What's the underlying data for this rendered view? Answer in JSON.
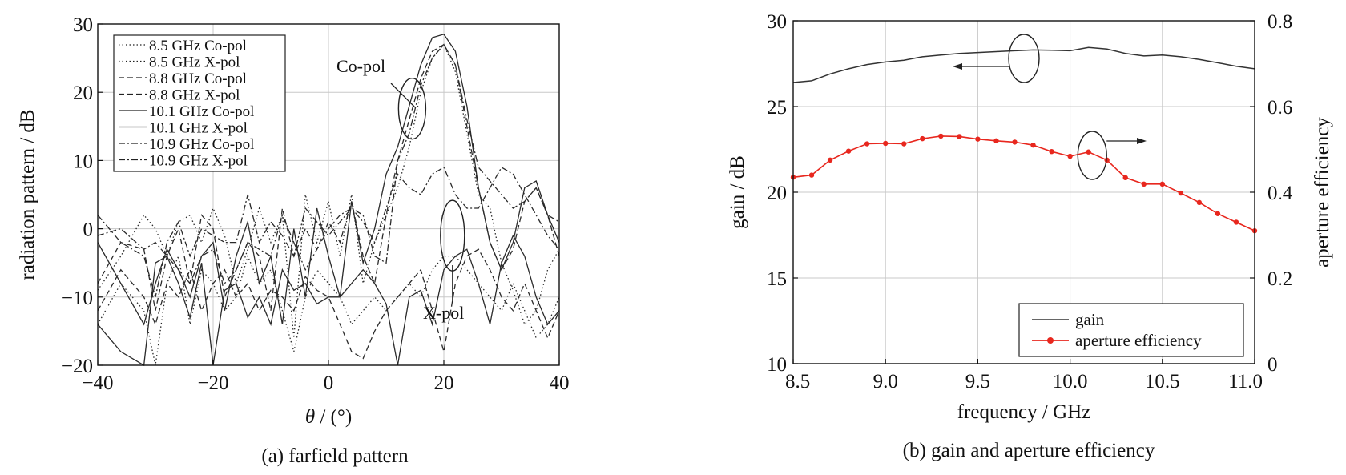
{
  "chart_data": [
    {
      "type": "line",
      "caption": "(a) farfield pattern",
      "xlabel_symbol": "θ",
      "xlabel_rest": " / (°)",
      "ylabel": "radiation pattern / dB",
      "xlim": [
        -40,
        40
      ],
      "ylim": [
        -20,
        30
      ],
      "xticks": [
        "−40",
        "−20",
        "0",
        "20",
        "40"
      ],
      "yticks": [
        "30",
        "20",
        "10",
        "0",
        "−10",
        "−20"
      ],
      "grid": true,
      "legend_position": "top-left",
      "annotations": [
        {
          "text": "Co-pol",
          "x": 14,
          "y": 19
        },
        {
          "text": "X-pol",
          "x": 21,
          "y": -0.5
        }
      ],
      "series": [
        {
          "name": "8.5 GHz Co-pol",
          "style": "dotted",
          "x": [
            -40,
            -36,
            -32,
            -30,
            -28,
            -26,
            -24,
            -22,
            -20,
            -18,
            -16,
            -14,
            -12,
            -10,
            -8,
            -6,
            -4,
            -2,
            0,
            2,
            4,
            6,
            8,
            10,
            12,
            14,
            16,
            18,
            20,
            22,
            24,
            26,
            28,
            30,
            32,
            34,
            36,
            38,
            40
          ],
          "y": [
            -9,
            -4,
            2,
            0,
            -4,
            1,
            2,
            -2,
            3,
            -1,
            -8,
            -3,
            3,
            -2,
            2,
            -16,
            5,
            -2,
            4,
            -4,
            5,
            -8,
            -2,
            2,
            6,
            12,
            20,
            25,
            27,
            23,
            14,
            5,
            3,
            -5,
            -9,
            -14,
            -12,
            -6,
            -3
          ]
        },
        {
          "name": "8.5 GHz X-pol",
          "style": "dotted",
          "x": [
            -40,
            -36,
            -32,
            -30,
            -28,
            -26,
            -24,
            -22,
            -20,
            -18,
            -16,
            -14,
            -12,
            -10,
            -8,
            -6,
            -4,
            -2,
            0,
            2,
            4,
            6,
            8,
            10,
            12,
            14,
            16,
            18,
            20,
            22,
            24,
            26,
            28,
            30,
            32,
            34,
            36,
            38,
            40
          ],
          "y": [
            -14,
            -8,
            -12,
            -20,
            -8,
            -4,
            -14,
            -6,
            -8,
            -12,
            -10,
            -4,
            -8,
            -6,
            -12,
            -18,
            -10,
            -6,
            -8,
            -10,
            -14,
            -12,
            -10,
            -12,
            -10,
            -8,
            -10,
            -6,
            -4,
            -4,
            -6,
            -8,
            -10,
            -12,
            -8,
            -12,
            -16,
            -14,
            -10
          ]
        },
        {
          "name": "8.8 GHz Co-pol",
          "style": "dashed",
          "x": [
            -40,
            -36,
            -32,
            -30,
            -28,
            -26,
            -24,
            -22,
            -20,
            -18,
            -16,
            -14,
            -12,
            -10,
            -8,
            -6,
            -4,
            -2,
            0,
            2,
            4,
            6,
            8,
            10,
            12,
            14,
            16,
            18,
            20,
            22,
            24,
            26,
            28,
            30,
            32,
            34,
            36,
            38,
            40
          ],
          "y": [
            -8,
            -2,
            -3,
            -12,
            -4,
            0,
            -8,
            2,
            0,
            -10,
            -6,
            -2,
            -4,
            -12,
            3,
            -4,
            0,
            -3,
            1,
            -2,
            4,
            -4,
            -8,
            2,
            10,
            16,
            22,
            26,
            27,
            24,
            15,
            6,
            -2,
            -6,
            -3,
            4,
            6,
            2,
            -4
          ]
        },
        {
          "name": "8.8 GHz X-pol",
          "style": "dashed",
          "x": [
            -40,
            -36,
            -32,
            -30,
            -28,
            -26,
            -24,
            -22,
            -20,
            -18,
            -16,
            -14,
            -12,
            -10,
            -8,
            -6,
            -4,
            -2,
            0,
            2,
            4,
            6,
            8,
            10,
            12,
            14,
            16,
            18,
            20,
            22,
            24,
            26,
            28,
            30,
            32,
            34,
            36,
            38,
            40
          ],
          "y": [
            -12,
            -6,
            -10,
            -14,
            -8,
            -10,
            -6,
            -12,
            -8,
            -6,
            -10,
            -8,
            -12,
            -9,
            -10,
            -12,
            -7,
            -9,
            -10,
            -14,
            -18,
            -19,
            -15,
            -12,
            -10,
            -8,
            -6,
            -12,
            -18,
            -8,
            -4,
            -3,
            -6,
            -10,
            -12,
            -8,
            -12,
            -16,
            -12
          ]
        },
        {
          "name": "10.1 GHz Co-pol",
          "style": "solid",
          "x": [
            -40,
            -36,
            -32,
            -30,
            -28,
            -26,
            -24,
            -22,
            -20,
            -18,
            -16,
            -14,
            -12,
            -10,
            -8,
            -6,
            -4,
            -2,
            0,
            2,
            4,
            6,
            8,
            10,
            12,
            14,
            16,
            18,
            20,
            22,
            24,
            26,
            28,
            30,
            32,
            34,
            36,
            38,
            40
          ],
          "y": [
            -2,
            -8,
            -14,
            -8,
            -3,
            -6,
            -10,
            -4,
            -2,
            -12,
            -4,
            1,
            -8,
            -4,
            -14,
            0,
            -10,
            3,
            -4,
            -10,
            4,
            -5,
            0,
            8,
            12,
            18,
            24,
            28,
            28.5,
            26,
            18,
            6,
            -2,
            -6,
            -2,
            6,
            7,
            2,
            -2
          ]
        },
        {
          "name": "10.1 GHz X-pol",
          "style": "solid",
          "x": [
            -40,
            -36,
            -32,
            -30,
            -28,
            -26,
            -24,
            -22,
            -20,
            -18,
            -16,
            -14,
            -12,
            -10,
            -8,
            -6,
            -4,
            -2,
            0,
            2,
            4,
            6,
            8,
            10,
            12,
            14,
            16,
            18,
            20,
            22,
            24,
            26,
            28,
            30,
            32,
            34,
            36,
            38,
            40
          ],
          "y": [
            -14,
            -18,
            -20,
            -5,
            -4,
            -8,
            -13,
            -5,
            -20,
            -9,
            -8,
            -13,
            -10,
            -14,
            -6,
            -9,
            -8,
            -11,
            -10,
            -10,
            -8,
            -6,
            -8,
            -11,
            -20,
            -10,
            -9,
            -14,
            -6,
            -4,
            -3,
            -8,
            -14,
            -5,
            -1,
            -4,
            -10,
            -14,
            -12
          ]
        },
        {
          "name": "10.9 GHz Co-pol",
          "style": "dashdot",
          "x": [
            -40,
            -36,
            -32,
            -30,
            -28,
            -26,
            -24,
            -22,
            -20,
            -18,
            -16,
            -14,
            -12,
            -10,
            -8,
            -6,
            -4,
            -2,
            0,
            2,
            4,
            6,
            8,
            10,
            12,
            14,
            16,
            18,
            20,
            22,
            24,
            26,
            28,
            30,
            32,
            34,
            36,
            38,
            40
          ],
          "y": [
            2,
            -2,
            -4,
            -10,
            -2,
            1,
            -4,
            0,
            -1,
            -2,
            -2,
            5,
            -2,
            1,
            -1,
            -4,
            3,
            1,
            -1,
            1,
            3,
            2,
            -4,
            -5,
            10,
            14,
            21,
            25,
            27,
            24,
            16,
            9,
            7,
            5,
            3,
            4,
            6,
            2,
            1
          ]
        },
        {
          "name": "10.9 GHz X-pol",
          "style": "dashdot",
          "x": [
            -40,
            -36,
            -32,
            -30,
            -28,
            -26,
            -24,
            -22,
            -20,
            -18,
            -16,
            -14,
            -12,
            -10,
            -8,
            -6,
            -4,
            -2,
            0,
            2,
            4,
            6,
            8,
            10,
            12,
            14,
            16,
            18,
            20,
            22,
            24,
            26,
            28,
            30,
            32,
            34,
            36,
            38,
            40
          ],
          "y": [
            -1,
            0,
            -3,
            -2,
            -4,
            -6,
            -8,
            -4,
            -3,
            -8,
            -6,
            -2,
            -3,
            -4,
            2,
            -2,
            -6,
            -3,
            0,
            2,
            3,
            1,
            -2,
            3,
            8,
            6,
            5,
            8,
            9,
            5,
            3,
            3,
            6,
            9,
            8,
            5,
            2,
            -1,
            -3
          ]
        }
      ]
    },
    {
      "type": "line",
      "caption": "(b) gain and aperture efficiency",
      "xlabel": "frequency / GHz",
      "ylabel": "gain / dB",
      "ylabel_right": "aperture efficiency",
      "xlim": [
        8.5,
        11.0
      ],
      "ylim": [
        10,
        30
      ],
      "ylim_right": [
        0,
        0.8
      ],
      "xticks": [
        "8.5",
        "9.0",
        "9.5",
        "10.0",
        "10.5",
        "11.0"
      ],
      "yticks": [
        "30",
        "25",
        "20",
        "15",
        "10"
      ],
      "yticks_right": [
        "0.8",
        "0.6",
        "0.4",
        "0.2",
        "0"
      ],
      "grid": true,
      "legend_position": "bottom-right",
      "series": [
        {
          "name": "gain",
          "color": "#333333",
          "axis": "left",
          "x": [
            8.5,
            8.6,
            8.7,
            8.8,
            8.9,
            9.0,
            9.1,
            9.2,
            9.3,
            9.4,
            9.5,
            9.6,
            9.7,
            9.8,
            9.9,
            10.0,
            10.1,
            10.2,
            10.3,
            10.4,
            10.5,
            10.6,
            10.7,
            10.8,
            10.9,
            11.0
          ],
          "y": [
            26.4,
            26.5,
            26.9,
            27.2,
            27.45,
            27.6,
            27.7,
            27.9,
            28.0,
            28.1,
            28.15,
            28.2,
            28.25,
            28.3,
            28.28,
            28.25,
            28.45,
            28.35,
            28.1,
            27.95,
            28.0,
            27.9,
            27.75,
            27.55,
            27.35,
            27.2
          ]
        },
        {
          "name": "aperture efficiency",
          "color": "#e8271e",
          "axis": "right",
          "x": [
            8.5,
            8.6,
            8.7,
            8.8,
            8.9,
            9.0,
            9.1,
            9.2,
            9.3,
            9.4,
            9.5,
            9.6,
            9.7,
            9.8,
            9.9,
            10.0,
            10.1,
            10.2,
            10.3,
            10.4,
            10.5,
            10.6,
            10.7,
            10.8,
            10.9,
            11.0
          ],
          "y": [
            0.435,
            0.44,
            0.475,
            0.496,
            0.513,
            0.514,
            0.513,
            0.525,
            0.531,
            0.53,
            0.524,
            0.52,
            0.517,
            0.51,
            0.495,
            0.484,
            0.494,
            0.475,
            0.434,
            0.419,
            0.419,
            0.398,
            0.376,
            0.35,
            0.33,
            0.31
          ]
        }
      ]
    }
  ]
}
